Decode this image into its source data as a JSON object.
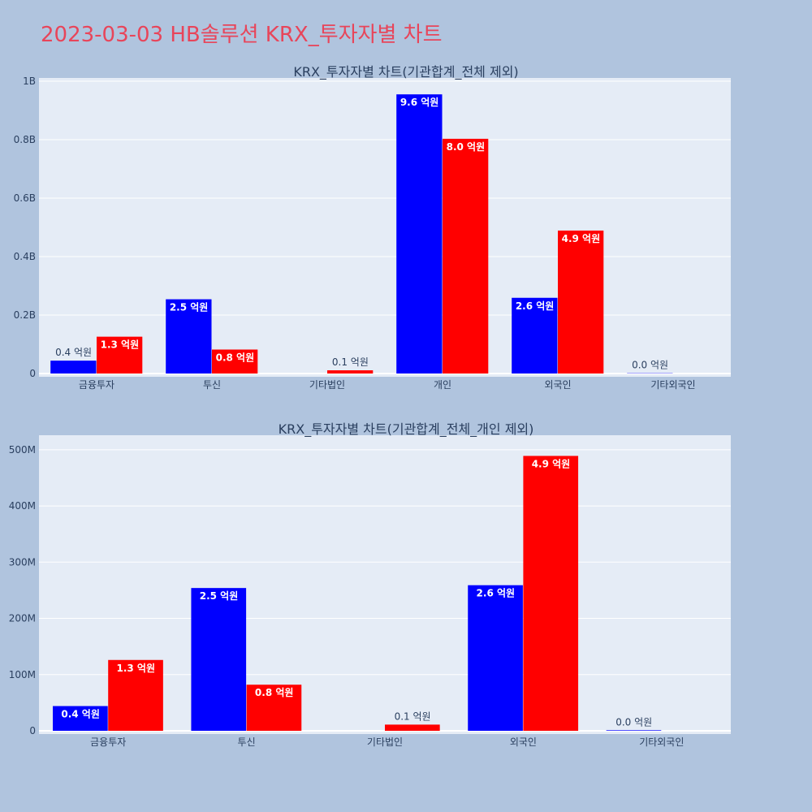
{
  "page": {
    "title": "2023-03-03 HB솔루션 KRX_투자자별 차트"
  },
  "colors": {
    "background": "#b0c4de",
    "plot_bg": "#e5ecf6",
    "series_a": "#0000ff",
    "series_b": "#ff0000",
    "title": "#e8455a"
  },
  "chart_data": [
    {
      "type": "bar",
      "title": "KRX_투자자별 차트(기관합계_전체 제외)",
      "categories": [
        "금융투자",
        "투신",
        "기타법인",
        "개인",
        "외국인",
        "기타외국인"
      ],
      "ylim": [
        0,
        1000000000
      ],
      "yticks": [
        0,
        200000000,
        400000000,
        600000000,
        800000000,
        1000000000
      ],
      "yticklabels": [
        "0",
        "0.2B",
        "0.4B",
        "0.6B",
        "0.8B",
        "1B"
      ],
      "grid": true,
      "series": [
        {
          "color": "#0000ff",
          "values": [
            44000000,
            254000000,
            0,
            955000000,
            259000000,
            1000000
          ],
          "labels": [
            "0.4 억원",
            "2.5 억원",
            "",
            "9.6 억원",
            "2.6 억원",
            "0.0 억원"
          ]
        },
        {
          "color": "#ff0000",
          "values": [
            126000000,
            82000000,
            11000000,
            803000000,
            489000000,
            0
          ],
          "labels": [
            "1.3 억원",
            "0.8 억원",
            "0.1 억원",
            "8.0 억원",
            "4.9 억원",
            ""
          ]
        }
      ]
    },
    {
      "type": "bar",
      "title": "KRX_투자자별 차트(기관합계_전체_개인 제외)",
      "categories": [
        "금융투자",
        "투신",
        "기타법인",
        "외국인",
        "기타외국인"
      ],
      "ylim": [
        0,
        520000000
      ],
      "yticks": [
        0,
        100000000,
        200000000,
        300000000,
        400000000,
        500000000
      ],
      "yticklabels": [
        "0",
        "100M",
        "200M",
        "300M",
        "400M",
        "500M"
      ],
      "grid": true,
      "series": [
        {
          "color": "#0000ff",
          "values": [
            44000000,
            254000000,
            0,
            259000000,
            1000000
          ],
          "labels": [
            "0.4 억원",
            "2.5 억원",
            "",
            "2.6 억원",
            "0.0 억원"
          ]
        },
        {
          "color": "#ff0000",
          "values": [
            126000000,
            82000000,
            11000000,
            489000000,
            0
          ],
          "labels": [
            "1.3 억원",
            "0.8 억원",
            "0.1 억원",
            "4.9 억원",
            ""
          ]
        }
      ]
    }
  ]
}
